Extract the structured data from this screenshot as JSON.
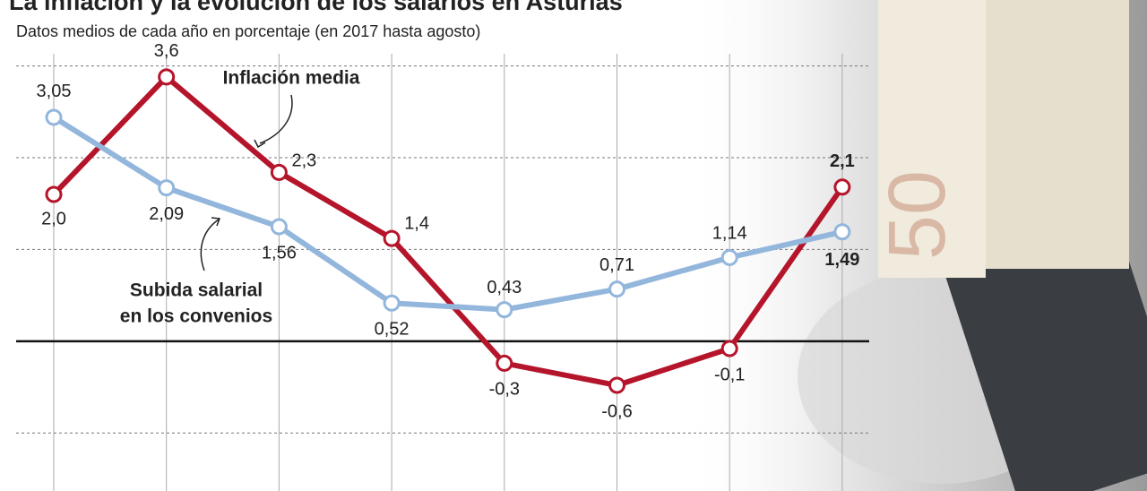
{
  "chart_data": {
    "type": "line",
    "title": "La inflación y la evolución de los salarios en Asturias",
    "subtitle": "Datos medios de cada año en porcentaje (en 2017 hasta agosto)",
    "categories": [
      null,
      null,
      null,
      null,
      null,
      null,
      null,
      null
    ],
    "series": [
      {
        "name": "Inflación media",
        "color": "#b5152b",
        "values": [
          2.0,
          3.6,
          2.3,
          1.4,
          -0.3,
          -0.6,
          -0.1,
          2.1
        ],
        "value_labels": [
          "2,0",
          "3,6",
          "2,3",
          "1,4",
          "-0,3",
          "-0,6",
          "-0,1",
          "2,1"
        ]
      },
      {
        "name": "Subida salarial en los convenios",
        "color": "#93b6dc",
        "values": [
          3.05,
          2.09,
          1.56,
          0.52,
          0.43,
          0.71,
          1.14,
          1.49
        ],
        "value_labels": [
          "3,05",
          "2,09",
          "1,56",
          "0,52",
          "0,43",
          "0,71",
          "1,14",
          "1,49"
        ]
      }
    ],
    "annotations": [
      "Inflación media",
      "Subida salarial",
      "en los convenios"
    ],
    "ylim": [
      -2.04,
      4.16
    ],
    "yticks": [
      -1.25,
      0,
      1.25,
      2.5,
      3.75
    ],
    "grid": true
  }
}
